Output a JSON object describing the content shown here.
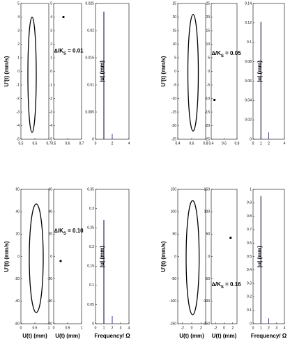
{
  "chart_data": [
    {
      "type": "orbit",
      "ylabel": "U'(t)  (mm/s)",
      "xlim": [
        0.5,
        0.7
      ],
      "xticks": [
        0.5,
        0.6,
        0.7
      ],
      "ylim": [
        -5,
        5
      ],
      "yticks": [
        -5,
        -4,
        -3,
        -2,
        -1,
        0,
        1,
        2,
        3,
        4,
        5
      ],
      "orbit": {
        "cx": 0.58,
        "cy": -0.25,
        "rx": 0.03,
        "ry": 4.25
      },
      "color": "#000000"
    },
    {
      "type": "scatter",
      "xlim": [
        0.5,
        0.7
      ],
      "xticks": [
        0.5,
        0.6,
        0.7
      ],
      "ylim": [
        -5,
        5
      ],
      "yticks": [
        -5,
        -4,
        -3,
        -2,
        -1,
        0,
        1,
        2,
        3,
        4,
        5
      ],
      "x": [
        0.57
      ],
      "values": [
        4.0
      ],
      "annotation": [
        "∆/K",
        "S",
        " = 0.01"
      ],
      "color": "#000000"
    },
    {
      "type": "stem",
      "ylabel": "|u|  (mm)",
      "xlim": [
        0,
        4
      ],
      "xticks": [
        0,
        2,
        4
      ],
      "ylim": [
        0,
        0.025
      ],
      "yticks": [
        0,
        0.005,
        0.01,
        0.015,
        0.02,
        0.025
      ],
      "x": [
        1,
        2
      ],
      "values": [
        0.0235,
        0.001
      ],
      "colors": [
        "#000033",
        "#3333cc"
      ]
    },
    {
      "type": "orbit",
      "ylabel": "U'(t)  (mm/s)",
      "xlim": [
        0.4,
        0.8
      ],
      "xticks": [
        0.4,
        0.6,
        0.8
      ],
      "ylim": [
        -25,
        25
      ],
      "yticks": [
        -25,
        -20,
        -15,
        -10,
        -5,
        0,
        5,
        10,
        15,
        20,
        25
      ],
      "orbit": {
        "cx": 0.62,
        "cy": -0.5,
        "rx": 0.075,
        "ry": 21.5
      },
      "color": "#000000"
    },
    {
      "type": "scatter",
      "xlim": [
        0.4,
        0.8
      ],
      "xticks": [
        0.4,
        0.6,
        0.8
      ],
      "ylim": [
        -25,
        25
      ],
      "yticks": [
        -25,
        -20,
        -15,
        -10,
        -5,
        0,
        5,
        10,
        15,
        20,
        25
      ],
      "x": [
        0.45
      ],
      "values": [
        -10.5
      ],
      "annotation": [
        "∆/K",
        "S",
        " = 0.05"
      ],
      "color": "#000000"
    },
    {
      "type": "stem",
      "ylabel": "|u|  (mm)",
      "xlim": [
        0,
        4
      ],
      "xticks": [
        0,
        1,
        2,
        4
      ],
      "ylim": [
        0,
        0.14
      ],
      "yticks": [
        0,
        0.02,
        0.04,
        0.06,
        0.08,
        0.1,
        0.12,
        0.14
      ],
      "x": [
        1,
        2
      ],
      "values": [
        0.121,
        0.007
      ],
      "colors": [
        "#000033",
        "#3333cc"
      ]
    },
    {
      "type": "orbit",
      "ylabel": "U'(t)  (mm/s)",
      "xlabel": "U(t)  (mm)",
      "xlim": [
        0,
        1
      ],
      "xticks": [
        0,
        0.5,
        1
      ],
      "ylim": [
        -60,
        60
      ],
      "yticks": [
        -60,
        -40,
        -20,
        0,
        20,
        40,
        60
      ],
      "orbit": {
        "cx": 0.55,
        "cy": -1.5,
        "rx": 0.25,
        "ry": 48.5
      },
      "color": "#000000"
    },
    {
      "type": "scatter",
      "xlabel": "U(t)  (mm)",
      "xlim": [
        0,
        1
      ],
      "xticks": [
        0,
        0.5,
        1
      ],
      "ylim": [
        -60,
        60
      ],
      "yticks": [
        -60,
        -40,
        -20,
        0,
        20,
        40,
        60
      ],
      "x": [
        0.25
      ],
      "values": [
        -4
      ],
      "annotation": [
        "∆/K",
        "S",
        " = 0.10"
      ],
      "color": "#000000"
    },
    {
      "type": "stem",
      "ylabel": "|u|  (mm)",
      "xlabel": "Frequency/ Ω",
      "xlim": [
        0,
        4
      ],
      "xticks": [
        0,
        1,
        2,
        3,
        4
      ],
      "ylim": [
        0,
        0.35
      ],
      "yticks": [
        0,
        0.05,
        0.1,
        0.15,
        0.2,
        0.25,
        0.3,
        0.35
      ],
      "x": [
        1,
        2
      ],
      "values": [
        0.27,
        0.02
      ],
      "colors": [
        "#000033",
        "#3333cc"
      ]
    },
    {
      "type": "orbit",
      "ylabel": "U'(t)  (mm/s)",
      "xlabel": "U(t)  (mm)",
      "xlim": [
        -3,
        3
      ],
      "xticks": [
        -2,
        0,
        2
      ],
      "ylim": [
        -150,
        150
      ],
      "yticks": [
        -150,
        -100,
        -50,
        0,
        50,
        100,
        150
      ],
      "orbit": {
        "cx": 0.2,
        "cy": -2.5,
        "rx": 1.4,
        "ry": 127.5
      },
      "color": "#000000"
    },
    {
      "type": "scatter",
      "xlabel": "U(t)  (mm)",
      "xlim": [
        -3,
        3
      ],
      "xticks": [
        -2,
        0,
        2
      ],
      "ylim": [
        -150,
        150
      ],
      "yticks": [
        -150,
        -100,
        -50,
        0,
        50,
        100,
        150
      ],
      "x": [
        1.5
      ],
      "values": [
        42
      ],
      "annotation": [
        "∆/K",
        "S",
        " = 0.16"
      ],
      "color": "#000000"
    },
    {
      "type": "stem",
      "ylabel": "|u|  (mm)",
      "xlabel": "Frequency/ Ω",
      "xlim": [
        0,
        4
      ],
      "xticks": [
        0,
        1,
        2,
        3,
        4
      ],
      "ylim": [
        0,
        1
      ],
      "yticks": [
        0,
        0.1,
        0.2,
        0.3,
        0.4,
        0.5,
        0.6,
        0.7,
        0.8,
        0.9,
        1
      ],
      "x": [
        1,
        2
      ],
      "values": [
        0.95,
        0.04
      ],
      "colors": [
        "#000033",
        "#3333cc"
      ]
    }
  ]
}
